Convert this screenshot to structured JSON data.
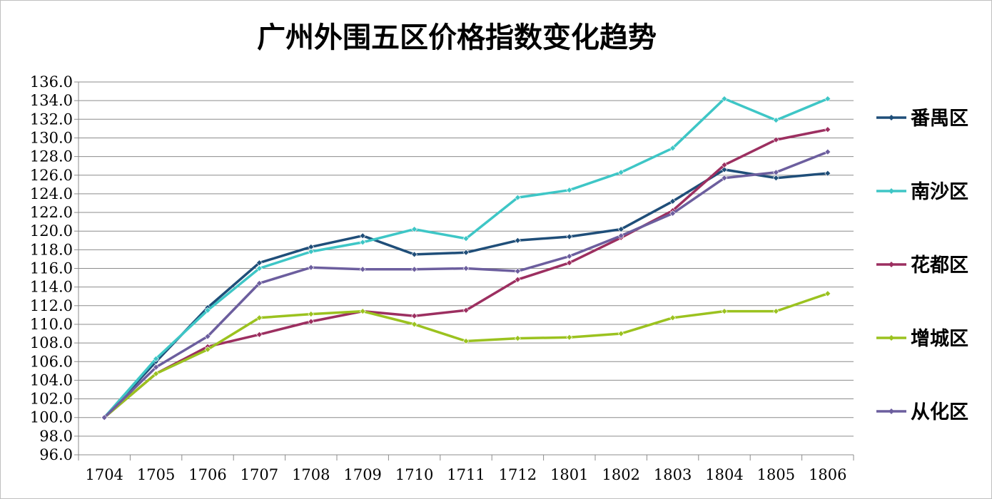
{
  "chart_data": {
    "type": "line",
    "title": "广州外围五区价格指数变化趋势",
    "categories": [
      "1704",
      "1705",
      "1706",
      "1707",
      "1708",
      "1709",
      "1710",
      "1711",
      "1712",
      "1801",
      "1802",
      "1803",
      "1804",
      "1805",
      "1806"
    ],
    "ylim": [
      96.0,
      136.0
    ],
    "ytick_step": 2.0,
    "yticks": [
      "96.0",
      "98.0",
      "100.0",
      "102.0",
      "104.0",
      "106.0",
      "108.0",
      "110.0",
      "112.0",
      "114.0",
      "116.0",
      "118.0",
      "120.0",
      "122.0",
      "124.0",
      "126.0",
      "128.0",
      "130.0",
      "132.0",
      "134.0",
      "136.0"
    ],
    "grid": "horizontal",
    "legend_position": "right",
    "series": [
      {
        "name": "番禺区",
        "color": "#1f4e79",
        "values": [
          100.0,
          106.0,
          111.8,
          116.6,
          118.3,
          119.5,
          117.5,
          117.7,
          119.0,
          119.4,
          120.2,
          123.2,
          126.6,
          125.7,
          126.2
        ]
      },
      {
        "name": "南沙区",
        "color": "#3ec6c6",
        "values": [
          100.0,
          106.3,
          111.5,
          116.0,
          117.8,
          118.8,
          120.2,
          119.2,
          123.6,
          124.4,
          126.3,
          128.9,
          134.2,
          131.9,
          134.2
        ]
      },
      {
        "name": "花都区",
        "color": "#9c2f60",
        "values": [
          100.0,
          104.7,
          107.6,
          108.9,
          110.3,
          111.4,
          110.9,
          111.5,
          114.8,
          116.6,
          119.3,
          122.2,
          127.1,
          129.8,
          130.9
        ]
      },
      {
        "name": "增城区",
        "color": "#9bc21f",
        "values": [
          100.0,
          104.7,
          107.3,
          110.7,
          111.1,
          111.4,
          110.0,
          108.2,
          108.5,
          108.6,
          109.0,
          110.7,
          111.4,
          111.4,
          113.3
        ]
      },
      {
        "name": "从化区",
        "color": "#6c5e9e",
        "values": [
          100.0,
          105.4,
          108.7,
          114.4,
          116.1,
          115.9,
          115.9,
          116.0,
          115.7,
          117.3,
          119.5,
          121.9,
          125.7,
          126.3,
          128.5
        ]
      }
    ]
  }
}
